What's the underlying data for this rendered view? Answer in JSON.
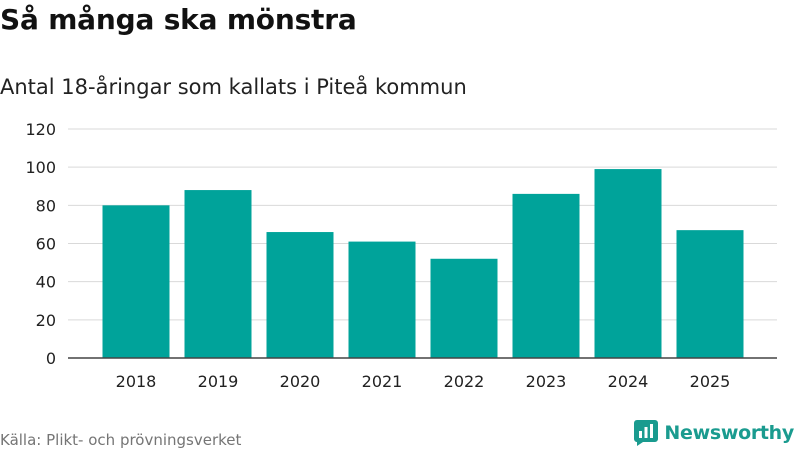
{
  "title": "Så många ska mönstra",
  "subtitle": "Antal 18-åringar som kallats i Piteå kommun",
  "source": "Källa: Plikt- och prövningsverket",
  "brand": {
    "name": "Newsworthy",
    "logo_icon": "newsworthy-logo-icon",
    "color": "#1a9b8f"
  },
  "colors": {
    "bar": "#00a39a",
    "grid": "#d9d9d9",
    "axis": "#444444",
    "text": "#222222"
  },
  "chart_data": {
    "type": "bar",
    "categories": [
      "2018",
      "2019",
      "2020",
      "2021",
      "2022",
      "2023",
      "2024",
      "2025"
    ],
    "values": [
      80,
      88,
      66,
      61,
      52,
      86,
      99,
      67
    ],
    "ylim": [
      0,
      120
    ],
    "yticks": [
      0,
      20,
      40,
      60,
      80,
      100,
      120
    ],
    "grid": true,
    "legend": "none"
  }
}
